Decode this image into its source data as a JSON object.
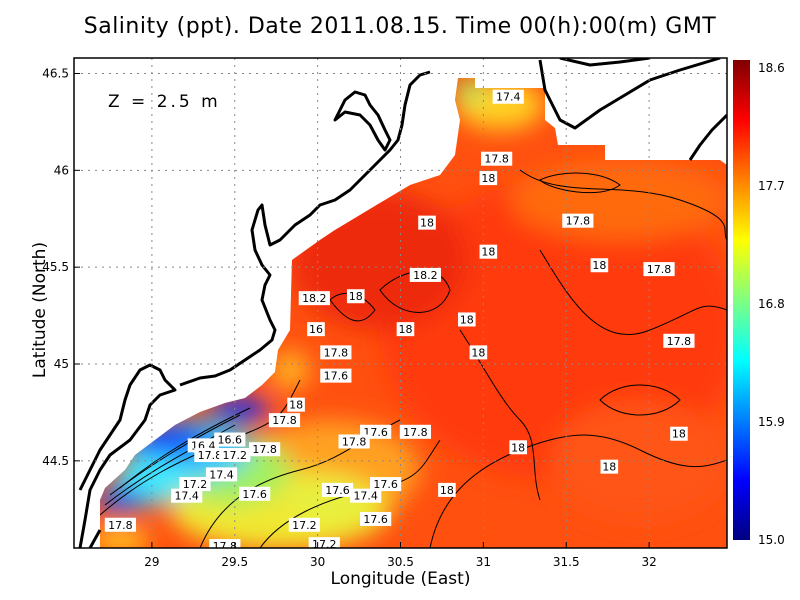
{
  "title": "Salinity (ppt). Date 2011.08.15. Time 00(h):00(m) GMT",
  "depth_label": "Z = 2.5 m",
  "x_axis": {
    "label": "Longitude (East)",
    "ticks": [
      "29",
      "29.5",
      "30",
      "30.5",
      "31",
      "31.5",
      "32"
    ],
    "range": [
      28.53,
      32.47
    ]
  },
  "y_axis": {
    "label": "Latitude (North)",
    "ticks": [
      "44.5",
      "45",
      "45.5",
      "46",
      "46.5"
    ],
    "range": [
      44.05,
      46.58
    ]
  },
  "grid": "dotted",
  "colorbar": {
    "labels": [
      "18.6",
      "17.7",
      "16.8",
      "15.9",
      "15.0"
    ],
    "range": [
      15.0,
      18.6
    ],
    "colors": [
      "#800000",
      "#ff0000",
      "#ff8000",
      "#ffff00",
      "#80ff80",
      "#00ffff",
      "#0080ff",
      "#0000ff",
      "#000080"
    ]
  },
  "colors": {
    "land": "#ffffff",
    "coast": "#000000",
    "sea_base": "#ff5010"
  },
  "contour_labels": [
    {
      "text": "17.4",
      "lon": 31.15,
      "lat": 46.38
    },
    {
      "text": "17.8",
      "lon": 31.08,
      "lat": 46.06
    },
    {
      "text": "18",
      "lon": 31.03,
      "lat": 45.96
    },
    {
      "text": "18",
      "lon": 30.66,
      "lat": 45.73
    },
    {
      "text": "17.8",
      "lon": 31.57,
      "lat": 45.74
    },
    {
      "text": "18",
      "lon": 31.03,
      "lat": 45.58
    },
    {
      "text": "18",
      "lon": 31.7,
      "lat": 45.51
    },
    {
      "text": "17.8",
      "lon": 32.06,
      "lat": 45.49
    },
    {
      "text": "18.2",
      "lon": 30.65,
      "lat": 45.46
    },
    {
      "text": "18.2",
      "lon": 29.98,
      "lat": 45.34
    },
    {
      "text": "18",
      "lon": 30.23,
      "lat": 45.35
    },
    {
      "text": "18",
      "lon": 30.9,
      "lat": 45.23
    },
    {
      "text": "16",
      "lon": 29.99,
      "lat": 45.18
    },
    {
      "text": "18",
      "lon": 30.53,
      "lat": 45.18
    },
    {
      "text": "17.8",
      "lon": 32.18,
      "lat": 45.12
    },
    {
      "text": "17.8",
      "lon": 30.11,
      "lat": 45.06
    },
    {
      "text": "18",
      "lon": 30.97,
      "lat": 45.06
    },
    {
      "text": "17.6",
      "lon": 30.11,
      "lat": 44.94
    },
    {
      "text": "18",
      "lon": 29.87,
      "lat": 44.79
    },
    {
      "text": "17.8",
      "lon": 29.8,
      "lat": 44.71
    },
    {
      "text": "17.6",
      "lon": 30.35,
      "lat": 44.65
    },
    {
      "text": "17.8",
      "lon": 30.59,
      "lat": 44.65
    },
    {
      "text": "17.8",
      "lon": 30.22,
      "lat": 44.6
    },
    {
      "text": "16.4",
      "lon": 29.31,
      "lat": 44.58
    },
    {
      "text": "16.6",
      "lon": 29.47,
      "lat": 44.61
    },
    {
      "text": "17.8",
      "lon": 29.35,
      "lat": 44.53
    },
    {
      "text": "17.2",
      "lon": 29.5,
      "lat": 44.53
    },
    {
      "text": "17.8",
      "lon": 29.68,
      "lat": 44.56
    },
    {
      "text": "18",
      "lon": 31.21,
      "lat": 44.57
    },
    {
      "text": "18",
      "lon": 32.18,
      "lat": 44.64
    },
    {
      "text": "18",
      "lon": 31.76,
      "lat": 44.47
    },
    {
      "text": "17.4",
      "lon": 29.42,
      "lat": 44.43
    },
    {
      "text": "17.2",
      "lon": 29.26,
      "lat": 44.38
    },
    {
      "text": "17.4",
      "lon": 29.21,
      "lat": 44.32
    },
    {
      "text": "17.8",
      "lon": 28.81,
      "lat": 44.17
    },
    {
      "text": "17.6",
      "lon": 29.62,
      "lat": 44.33
    },
    {
      "text": "17.6",
      "lon": 30.12,
      "lat": 44.35
    },
    {
      "text": "17.4",
      "lon": 30.29,
      "lat": 44.32
    },
    {
      "text": "17.6",
      "lon": 30.41,
      "lat": 44.38
    },
    {
      "text": "18",
      "lon": 30.78,
      "lat": 44.35
    },
    {
      "text": "17.6",
      "lon": 30.35,
      "lat": 44.2
    },
    {
      "text": "17.2",
      "lon": 29.92,
      "lat": 44.17
    },
    {
      "text": "17.8",
      "lon": 29.44,
      "lat": 44.06
    },
    {
      "text": "17.2",
      "lon": 30.04,
      "lat": 44.07
    }
  ]
}
